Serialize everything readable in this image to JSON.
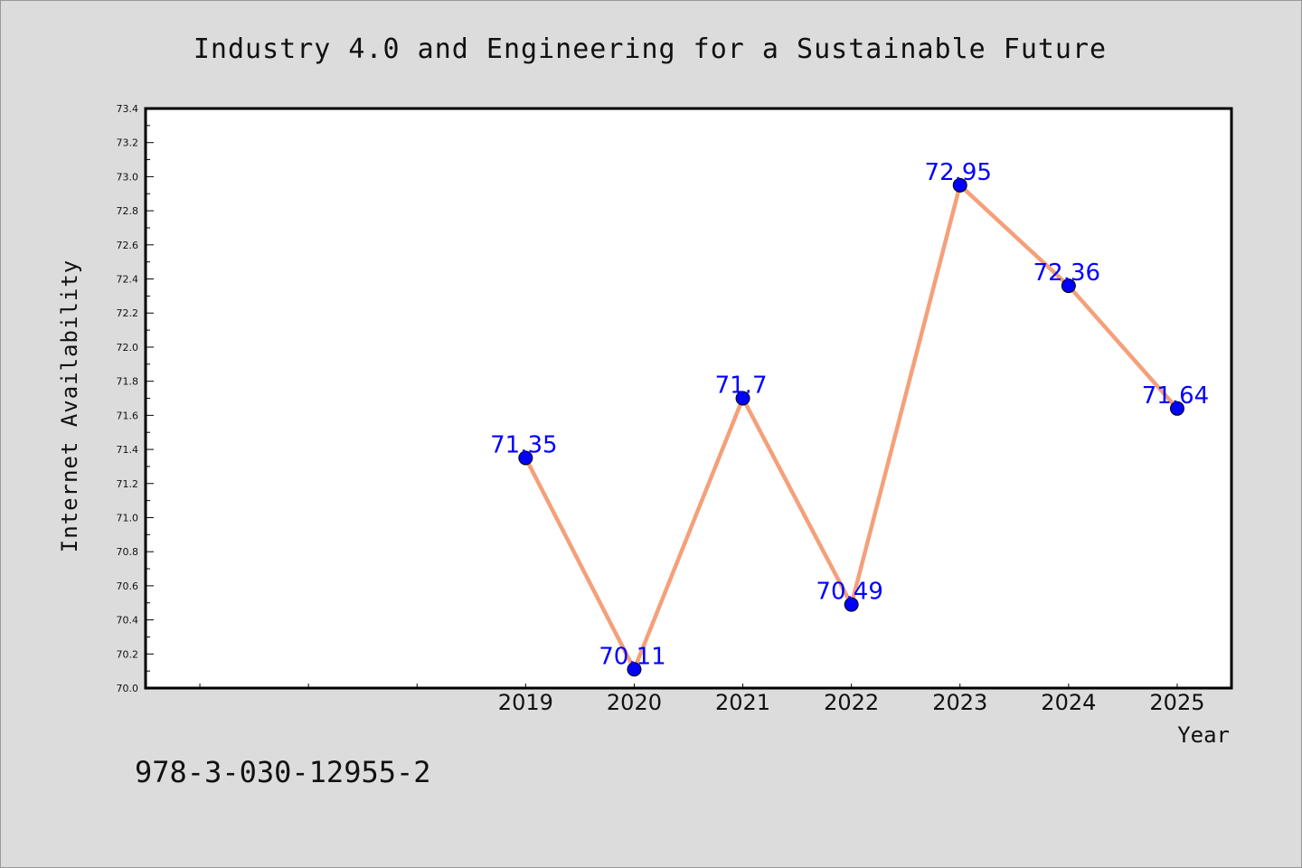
{
  "page": {
    "footnote": "978-3-030-12955-2"
  },
  "chart_data": {
    "type": "line",
    "title": "Industry 4.0 and Engineering for a Sustainable Future",
    "xlabel": "Year",
    "ylabel": "Internet Availability",
    "x": [
      2019,
      2020,
      2021,
      2022,
      2023,
      2024,
      2025
    ],
    "x_tick_labels": [
      "2019",
      "2020",
      "2021",
      "2022",
      "2023",
      "2024",
      "2025"
    ],
    "xlim": [
      2015.5,
      2025.5
    ],
    "ylim": [
      70.0,
      73.4
    ],
    "y_tick_labels": [
      "70.0",
      "70.2",
      "70.4",
      "70.6",
      "70.8",
      "71.0",
      "71.2",
      "71.4",
      "71.6",
      "71.8",
      "72.0",
      "72.2",
      "72.4",
      "72.6",
      "72.8",
      "73.0",
      "73.2",
      "73.4"
    ],
    "series": [
      {
        "values": [
          71.35,
          70.11,
          71.7,
          70.49,
          72.95,
          72.36,
          71.64
        ],
        "labels": [
          "71.35",
          "70.11",
          "71.7",
          "70.49",
          "72.95",
          "72.36",
          "71.64"
        ],
        "line_color": "#f4a07a",
        "marker_color": "#0000ff",
        "label_color": "#0000ff"
      }
    ],
    "grid": false,
    "legend": false,
    "background": "#dcdcdc",
    "plot_background": "#ffffff"
  }
}
